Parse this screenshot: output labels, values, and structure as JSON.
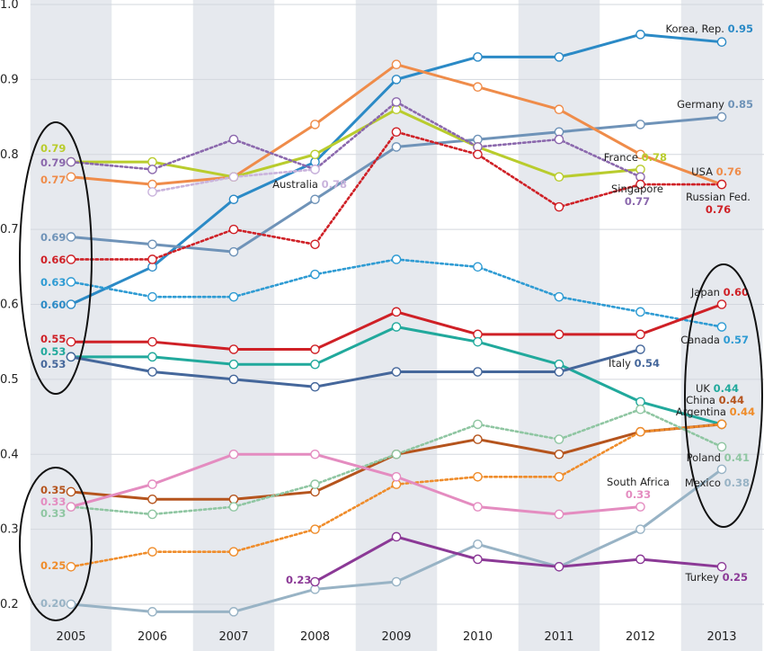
{
  "chart_data": {
    "type": "line",
    "title": "",
    "xlabel": "",
    "ylabel": "",
    "ylim": [
      0.2,
      1.0
    ],
    "yticks": [
      "0.2",
      "0.3",
      "0.4",
      "0.5",
      "0.6",
      "0.7",
      "0.8",
      "0.9",
      "1.0"
    ],
    "categories": [
      "2005",
      "2006",
      "2007",
      "2008",
      "2009",
      "2010",
      "2011",
      "2012",
      "2013"
    ],
    "grid": "horizontal lines and alternating vertical column bands",
    "series": [
      {
        "name": "Korea, Rep.",
        "color": "#2b8ac6",
        "dashed": false,
        "values": [
          0.6,
          0.65,
          0.74,
          0.79,
          0.9,
          0.93,
          0.93,
          0.96,
          0.95
        ],
        "end_label": "0.95"
      },
      {
        "name": "Germany",
        "color": "#6f93b8",
        "dashed": false,
        "values": [
          0.69,
          0.68,
          0.67,
          0.74,
          0.81,
          0.82,
          0.83,
          0.84,
          0.85
        ],
        "end_label": "0.85"
      },
      {
        "name": "USA",
        "color": "#ef8c4a",
        "dashed": false,
        "values": [
          0.77,
          0.76,
          0.77,
          0.84,
          0.92,
          0.89,
          0.86,
          0.8,
          0.76
        ],
        "end_label": "0.76"
      },
      {
        "name": "France",
        "color": "#b9cc2d",
        "dashed": false,
        "values": [
          0.79,
          0.79,
          0.77,
          0.8,
          0.86,
          0.81,
          0.77,
          0.78,
          null
        ],
        "end_label": "0.78"
      },
      {
        "name": "Singapore",
        "color": "#8b68ad",
        "dashed": true,
        "values": [
          0.79,
          0.78,
          0.82,
          0.78,
          0.87,
          0.81,
          0.82,
          0.77,
          null
        ],
        "end_label": "0.77"
      },
      {
        "name": "Russian Fed.",
        "color": "#cf2026",
        "dashed": true,
        "values": [
          0.66,
          0.66,
          0.7,
          0.68,
          0.83,
          0.8,
          0.73,
          0.76,
          0.76
        ],
        "end_label": "0.76"
      },
      {
        "name": "Australia",
        "color": "#c9b3dc",
        "dashed": true,
        "values": [
          null,
          0.75,
          0.77,
          0.78,
          null,
          null,
          null,
          null,
          null
        ],
        "end_label": "0.78"
      },
      {
        "name": "Canada",
        "color": "#2e9bd3",
        "dashed": true,
        "values": [
          0.63,
          0.61,
          0.61,
          0.64,
          0.66,
          0.65,
          0.61,
          0.59,
          0.57
        ],
        "end_label": "0.57"
      },
      {
        "name": "Japan",
        "color": "#cf2026",
        "dashed": false,
        "values": [
          0.55,
          0.55,
          0.54,
          0.54,
          0.59,
          0.56,
          0.56,
          0.56,
          0.6
        ],
        "end_label": "0.60"
      },
      {
        "name": "UK",
        "color": "#21a99c",
        "dashed": false,
        "values": [
          0.53,
          0.53,
          0.52,
          0.52,
          0.57,
          0.55,
          0.52,
          0.47,
          0.44
        ],
        "end_label": "0.44"
      },
      {
        "name": "Italy",
        "color": "#45679b",
        "dashed": false,
        "values": [
          0.53,
          0.51,
          0.5,
          0.49,
          0.51,
          0.51,
          0.51,
          0.54,
          null
        ],
        "end_label": "0.54"
      },
      {
        "name": "China",
        "color": "#b5541d",
        "dashed": false,
        "values": [
          0.35,
          0.34,
          0.34,
          0.35,
          0.4,
          0.42,
          0.4,
          0.43,
          0.44
        ],
        "end_label": "0.44"
      },
      {
        "name": "Argentina",
        "color": "#ef8c2a",
        "dashed": true,
        "values": [
          0.25,
          0.27,
          0.27,
          0.3,
          0.36,
          0.37,
          0.37,
          0.43,
          0.44
        ],
        "end_label": "0.44"
      },
      {
        "name": "Poland",
        "color": "#8fc6a2",
        "dashed": true,
        "values": [
          0.33,
          0.32,
          0.33,
          0.36,
          0.4,
          0.44,
          0.42,
          0.46,
          0.41
        ],
        "end_label": "0.41"
      },
      {
        "name": "South Africa",
        "color": "#e48cc0",
        "dashed": false,
        "values": [
          0.33,
          0.36,
          0.4,
          0.4,
          0.37,
          0.33,
          0.32,
          0.33,
          null
        ],
        "end_label": "0.33"
      },
      {
        "name": "Mexico",
        "color": "#98b3c5",
        "dashed": false,
        "values": [
          0.2,
          0.19,
          0.19,
          0.22,
          0.23,
          0.28,
          0.25,
          0.3,
          0.38
        ],
        "end_label": "0.38"
      },
      {
        "name": "Turkey",
        "color": "#8b3996",
        "dashed": false,
        "values": [
          null,
          null,
          null,
          0.23,
          0.29,
          0.26,
          0.25,
          0.26,
          0.25
        ],
        "end_label": "0.25"
      }
    ],
    "start_labels": [
      {
        "text": "0.79",
        "color": "#b9cc2d"
      },
      {
        "text": "0.79",
        "color": "#8b68ad"
      },
      {
        "text": "0.77",
        "color": "#ef8c4a"
      },
      {
        "text": "0.69",
        "color": "#6f93b8"
      },
      {
        "text": "0.66",
        "color": "#cf2026"
      },
      {
        "text": "0.63",
        "color": "#2e9bd3"
      },
      {
        "text": "0.60",
        "color": "#2b8ac6"
      },
      {
        "text": "0.55",
        "color": "#cf2026"
      },
      {
        "text": "0.53",
        "color": "#21a99c"
      },
      {
        "text": "0.53",
        "color": "#45679b"
      },
      {
        "text": "0.35",
        "color": "#b5541d"
      },
      {
        "text": "0.33",
        "color": "#e48cc0"
      },
      {
        "text": "0.33",
        "color": "#8fc6a2"
      },
      {
        "text": "0.25",
        "color": "#ef8c2a"
      },
      {
        "text": "0.20",
        "color": "#98b3c5"
      },
      {
        "text": "0.23",
        "color": "#8b3996"
      }
    ],
    "annotations": [
      "ellipse around 2005 upper start values",
      "ellipse around 2005 lower start values",
      "ellipse around 2013 middle end values"
    ]
  }
}
